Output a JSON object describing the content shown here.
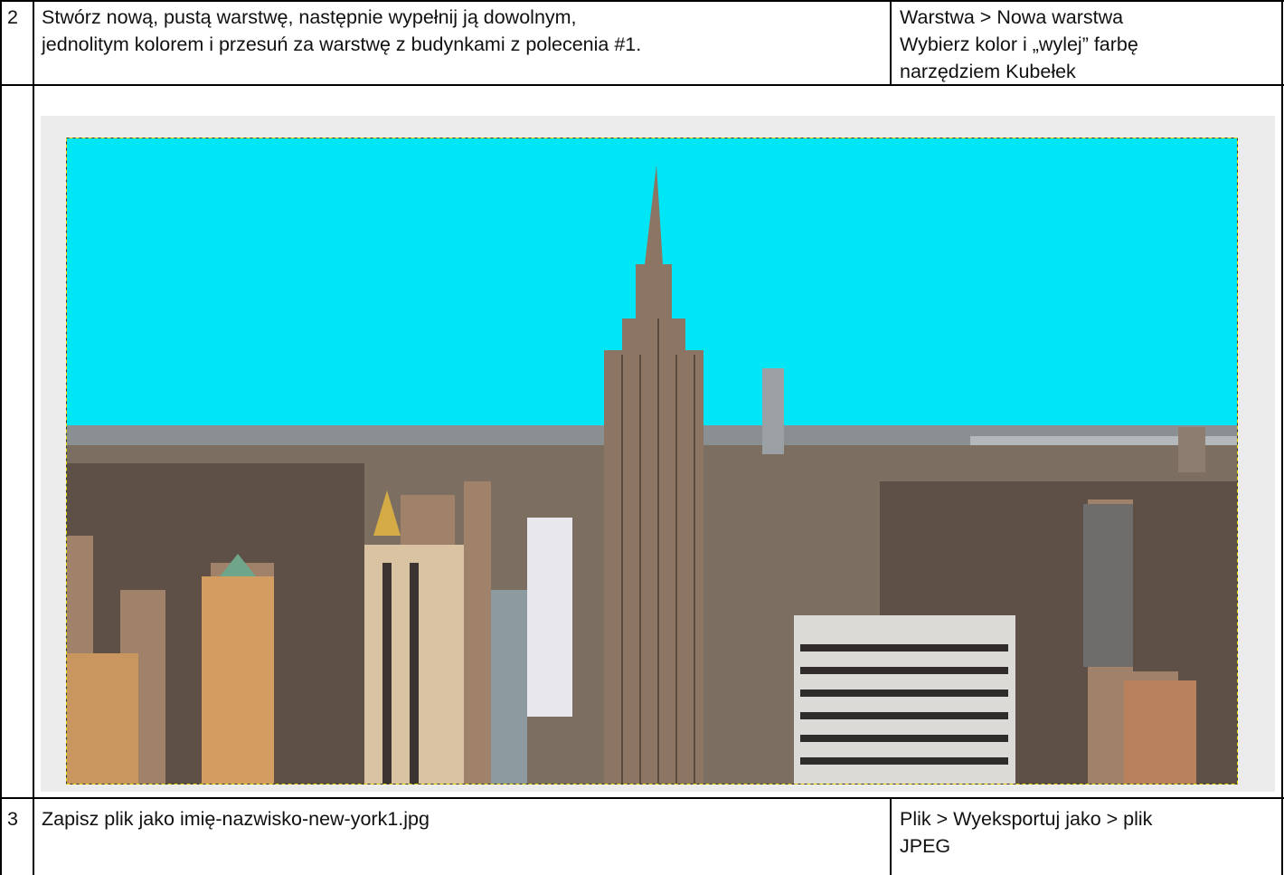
{
  "rows": [
    {
      "number": "2",
      "task": [
        "Stwórz nową, pustą warstwę, następnie wypełnij ją dowolnym,",
        "jednolitym kolorem i przesuń za warstwę z budynkami z polecenia #1."
      ],
      "menu": [
        "Warstwa > Nowa warstwa",
        "Wybierz kolor i „wylej” farbę",
        "narzędziem Kubełek"
      ]
    },
    {
      "number": "3",
      "task": [
        "Zapisz plik jako imię-nazwisko-new-york1.jpg"
      ],
      "menu": [
        "Plik > Wyeksportuj jako > plik",
        "JPEG"
      ]
    }
  ]
}
